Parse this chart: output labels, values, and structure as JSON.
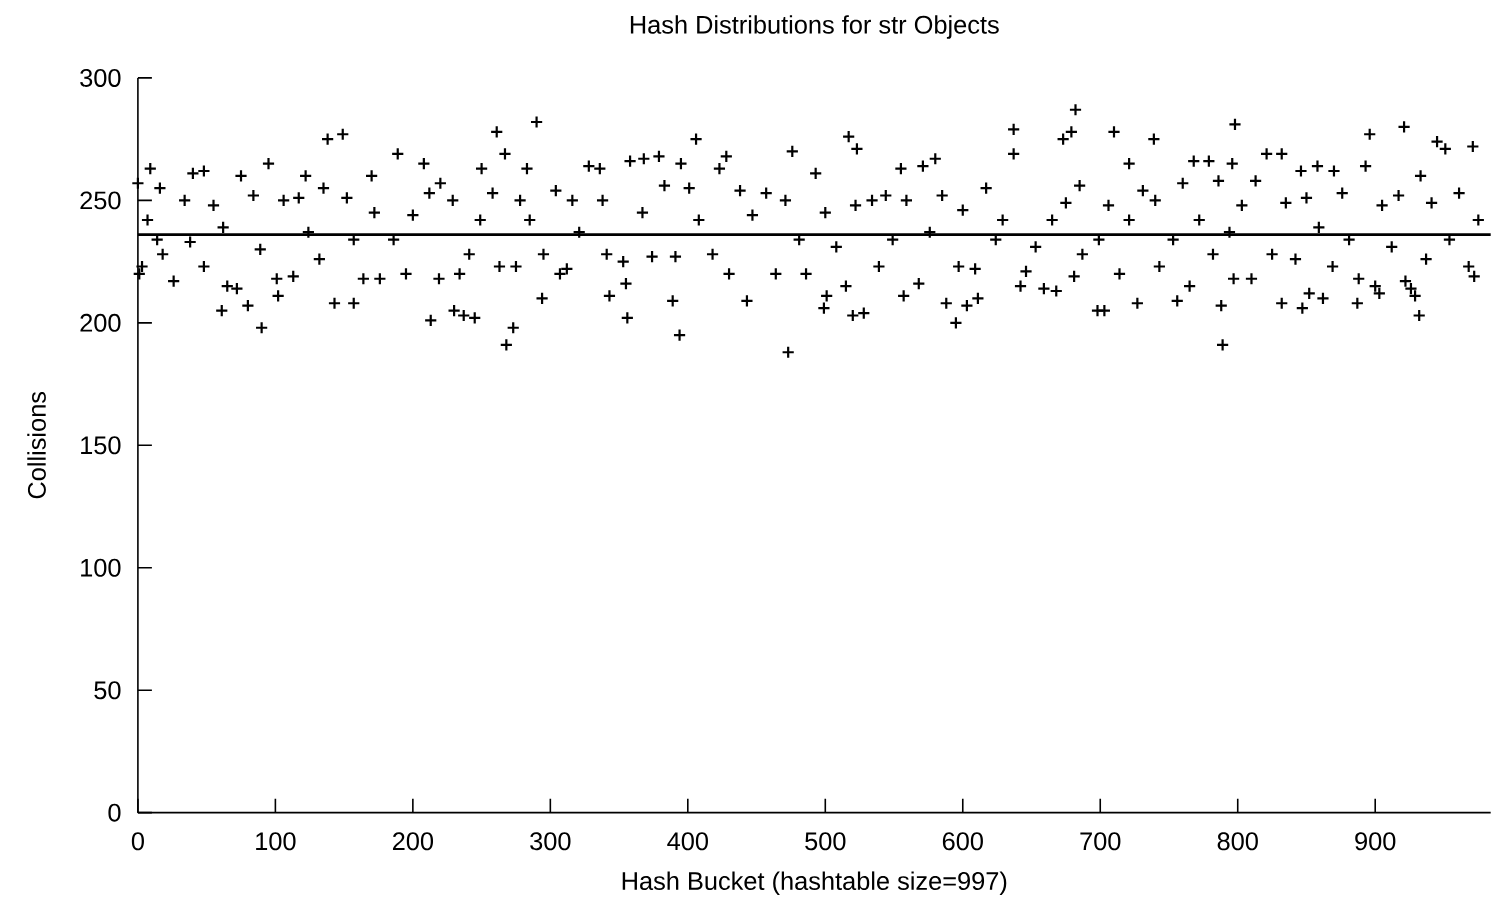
{
  "chart_data": {
    "type": "scatter",
    "title": "Hash Distributions for str Objects",
    "xlabel": "Hash Bucket (hashtable size=997)",
    "ylabel": "Collisions",
    "xlim": [
      0,
      984
    ],
    "xticks": [
      0,
      100,
      200,
      300,
      400,
      500,
      600,
      700,
      800,
      900
    ],
    "ylim": [
      0,
      300
    ],
    "yticks": [
      0,
      50,
      100,
      150,
      200,
      250,
      300
    ],
    "marker": "cross",
    "color": "#000000",
    "ref_lines": [
      {
        "axis": "y",
        "value": 236,
        "color": "#000000",
        "line_style": "solid"
      }
    ],
    "x": [
      0,
      1,
      3,
      7,
      9,
      14,
      16,
      18,
      26,
      34,
      38,
      40,
      48,
      48,
      55,
      61,
      62,
      65,
      72,
      75,
      80,
      84,
      89,
      90,
      95,
      101,
      102,
      106,
      113,
      117,
      122,
      124,
      132,
      135,
      138,
      143,
      149,
      152,
      157,
      157,
      164,
      170,
      172,
      176,
      186,
      189,
      195,
      200,
      208,
      212,
      213,
      219,
      220,
      229,
      230,
      234,
      237,
      241,
      245,
      249,
      250,
      258,
      261,
      263,
      267,
      268,
      273,
      275,
      278,
      283,
      285,
      290,
      294,
      295,
      304,
      307,
      312,
      316,
      321,
      328,
      336,
      338,
      341,
      343,
      353,
      355,
      356,
      358,
      367,
      368,
      374,
      379,
      383,
      389,
      391,
      394,
      395,
      401,
      406,
      408,
      418,
      423,
      428,
      430,
      438,
      443,
      447,
      457,
      464,
      471,
      473,
      476,
      481,
      486,
      493,
      499,
      500,
      501,
      508,
      515,
      517,
      520,
      522,
      523,
      528,
      534,
      539,
      544,
      549,
      555,
      557,
      559,
      568,
      571,
      576,
      580,
      585,
      588,
      595,
      597,
      600,
      603,
      609,
      611,
      617,
      624,
      629,
      637,
      637,
      642,
      646,
      653,
      659,
      665,
      668,
      673,
      675,
      679,
      681,
      682,
      685,
      687,
      698,
      699,
      703,
      706,
      710,
      714,
      721,
      721,
      727,
      731,
      739,
      740,
      743,
      753,
      756,
      760,
      765,
      768,
      772,
      779,
      782,
      786,
      788,
      789,
      794,
      796,
      797,
      798,
      803,
      810,
      813,
      821,
      825,
      832,
      832,
      835,
      842,
      846,
      847,
      850,
      852,
      858,
      859,
      862,
      869,
      870,
      876,
      881,
      887,
      888,
      893,
      896,
      900,
      903,
      905,
      912,
      917,
      921,
      922,
      926,
      929,
      932,
      933,
      937,
      941,
      945,
      951,
      954,
      961,
      968,
      971,
      972,
      975
    ],
    "values": [
      257,
      220,
      223,
      242,
      263,
      234,
      255,
      228,
      217,
      250,
      233,
      261,
      262,
      223,
      248,
      205,
      239,
      215,
      214,
      260,
      207,
      252,
      230,
      198,
      265,
      218,
      211,
      250,
      219,
      251,
      260,
      237,
      226,
      255,
      275,
      208,
      277,
      251,
      208,
      234,
      218,
      260,
      245,
      218,
      234,
      269,
      220,
      244,
      265,
      253,
      201,
      218,
      257,
      250,
      205,
      220,
      203,
      228,
      202,
      242,
      263,
      253,
      278,
      223,
      269,
      191,
      198,
      223,
      250,
      263,
      242,
      282,
      210,
      228,
      254,
      220,
      222,
      250,
      237,
      264,
      263,
      250,
      228,
      211,
      225,
      216,
      202,
      266,
      245,
      267,
      227,
      268,
      256,
      209,
      227,
      195,
      265,
      255,
      275,
      242,
      228,
      263,
      268,
      220,
      254,
      209,
      244,
      253,
      220,
      250,
      188,
      270,
      234,
      220,
      261,
      206,
      245,
      211,
      231,
      215,
      276,
      203,
      248,
      271,
      204,
      250,
      223,
      252,
      234,
      263,
      211,
      250,
      216,
      264,
      237,
      267,
      252,
      208,
      200,
      223,
      246,
      207,
      222,
      210,
      255,
      234,
      242,
      279,
      269,
      215,
      221,
      231,
      214,
      242,
      213,
      275,
      249,
      278,
      219,
      287,
      256,
      228,
      205,
      234,
      205,
      248,
      278,
      220,
      265,
      242,
      208,
      254,
      275,
      250,
      223,
      234,
      209,
      257,
      215,
      266,
      242,
      266,
      228,
      258,
      207,
      191,
      237,
      265,
      218,
      281,
      248,
      218,
      258,
      269,
      228,
      269,
      208,
      249,
      226,
      262,
      206,
      251,
      212,
      264,
      239,
      210,
      223,
      262,
      253,
      234,
      208,
      218,
      264,
      277,
      215,
      212,
      248,
      231,
      252,
      280,
      217,
      214,
      211,
      203,
      260,
      226,
      249,
      274,
      271,
      234,
      253,
      223,
      272,
      219,
      242
    ]
  }
}
